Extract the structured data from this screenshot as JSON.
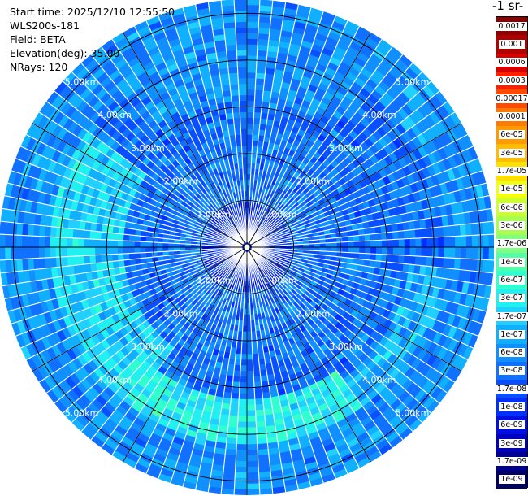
{
  "info": {
    "start_time": "Start time: 2025/12/10 12:55:50",
    "instrument": "WLS200s-181",
    "field": "Field: BETA",
    "elevation": "Elevation(deg): 35.00",
    "nrays": "NRays: 120"
  },
  "colorbar": {
    "unit_fragment": "-1 sr-",
    "labels": [
      "0.0017",
      "0.001",
      "0.0006",
      "0.0003",
      "0.00017",
      "0.0001",
      "6e-05",
      "3e-05",
      "1.7e-05",
      "1e-05",
      "6e-06",
      "3e-06",
      "1.7e-06",
      "1e-06",
      "6e-07",
      "3e-07",
      "1.7e-07",
      "1e-07",
      "6e-08",
      "3e-08",
      "1.7e-08",
      "1e-08",
      "6e-09",
      "3e-09",
      "1.7e-09",
      "1e-09"
    ],
    "colors": [
      "#8b0000",
      "#b00000",
      "#d80000",
      "#ff2000",
      "#ff4a00",
      "#ff7a00",
      "#ff9a00",
      "#ffbc00",
      "#ffe000",
      "#f2ff10",
      "#ccff30",
      "#a8ff50",
      "#80ff80",
      "#50ffa8",
      "#30ffd0",
      "#20f0f0",
      "#20d0ff",
      "#10b0ff",
      "#1090ff",
      "#1070ff",
      "#0850ff",
      "#0030ff",
      "#0010e0",
      "#0000c0",
      "#000090",
      "#000060"
    ]
  },
  "chart_data": {
    "type": "heatmap",
    "projection": "polar PPI",
    "field": "BETA",
    "elevation_deg": 35.0,
    "n_rays": 120,
    "range_rings_km": [
      1.0,
      2.0,
      3.0,
      4.0,
      5.0
    ],
    "range_ring_labels": [
      "1.00km",
      "2.00km",
      "3.00km",
      "4.00km",
      "5.00km"
    ],
    "max_range_km": 5.3,
    "azimuth_spokes_deg": [
      0,
      30,
      60,
      90,
      120,
      150,
      180,
      210,
      240,
      270,
      300,
      330
    ],
    "colorscale": "logarithmic, 1e-09 to 0.0017",
    "value_pattern": [
      {
        "region": "inner core (0-1 km)",
        "typical_value": "1e-08"
      },
      {
        "region": "mid ring (1-2.5 km)",
        "typical_value": "3e-08"
      },
      {
        "region": "outer band west (3-4 km, az 220-300)",
        "typical_value": "1.7e-07"
      },
      {
        "region": "outer band south (3.5-4 km, az 150-220)",
        "typical_value": "3e-07"
      },
      {
        "region": "outer band north (3.5-4.5 km, az 330-30)",
        "typical_value": "6e-08"
      },
      {
        "region": "edge (4.5-5.3 km)",
        "typical_value": "6e-08"
      }
    ]
  }
}
